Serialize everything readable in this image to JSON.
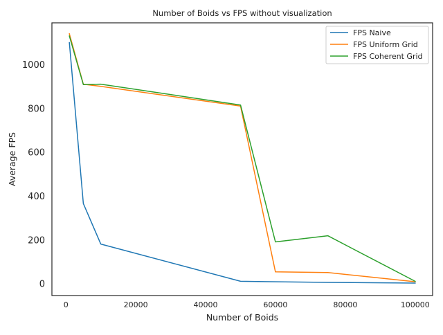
{
  "chart_data": {
    "type": "line",
    "title": "Number of Boids vs FPS without visualization",
    "xlabel": "Number of Boids",
    "ylabel": "Average FPS",
    "xlim": [
      -4000,
      105000
    ],
    "ylim": [
      -55,
      1190
    ],
    "xticks": [
      0,
      20000,
      40000,
      60000,
      80000,
      100000
    ],
    "yticks": [
      0,
      200,
      400,
      600,
      800,
      1000
    ],
    "grid": false,
    "legend_position": "top-right",
    "series": [
      {
        "name": "FPS Naive",
        "color": "#1f77b4",
        "x": [
          1000,
          5000,
          10000,
          50000,
          75000,
          100000
        ],
        "y": [
          1100,
          365,
          180,
          10,
          5,
          2
        ]
      },
      {
        "name": "FPS Uniform Grid",
        "color": "#ff7f0e",
        "x": [
          1000,
          5000,
          10000,
          50000,
          60000,
          75000,
          100000
        ],
        "y": [
          1140,
          910,
          900,
          810,
          53,
          50,
          8
        ]
      },
      {
        "name": "FPS Coherent Grid",
        "color": "#2ca02c",
        "x": [
          1000,
          5000,
          10000,
          50000,
          60000,
          75000,
          100000
        ],
        "y": [
          1130,
          908,
          910,
          815,
          190,
          218,
          10
        ]
      }
    ]
  }
}
